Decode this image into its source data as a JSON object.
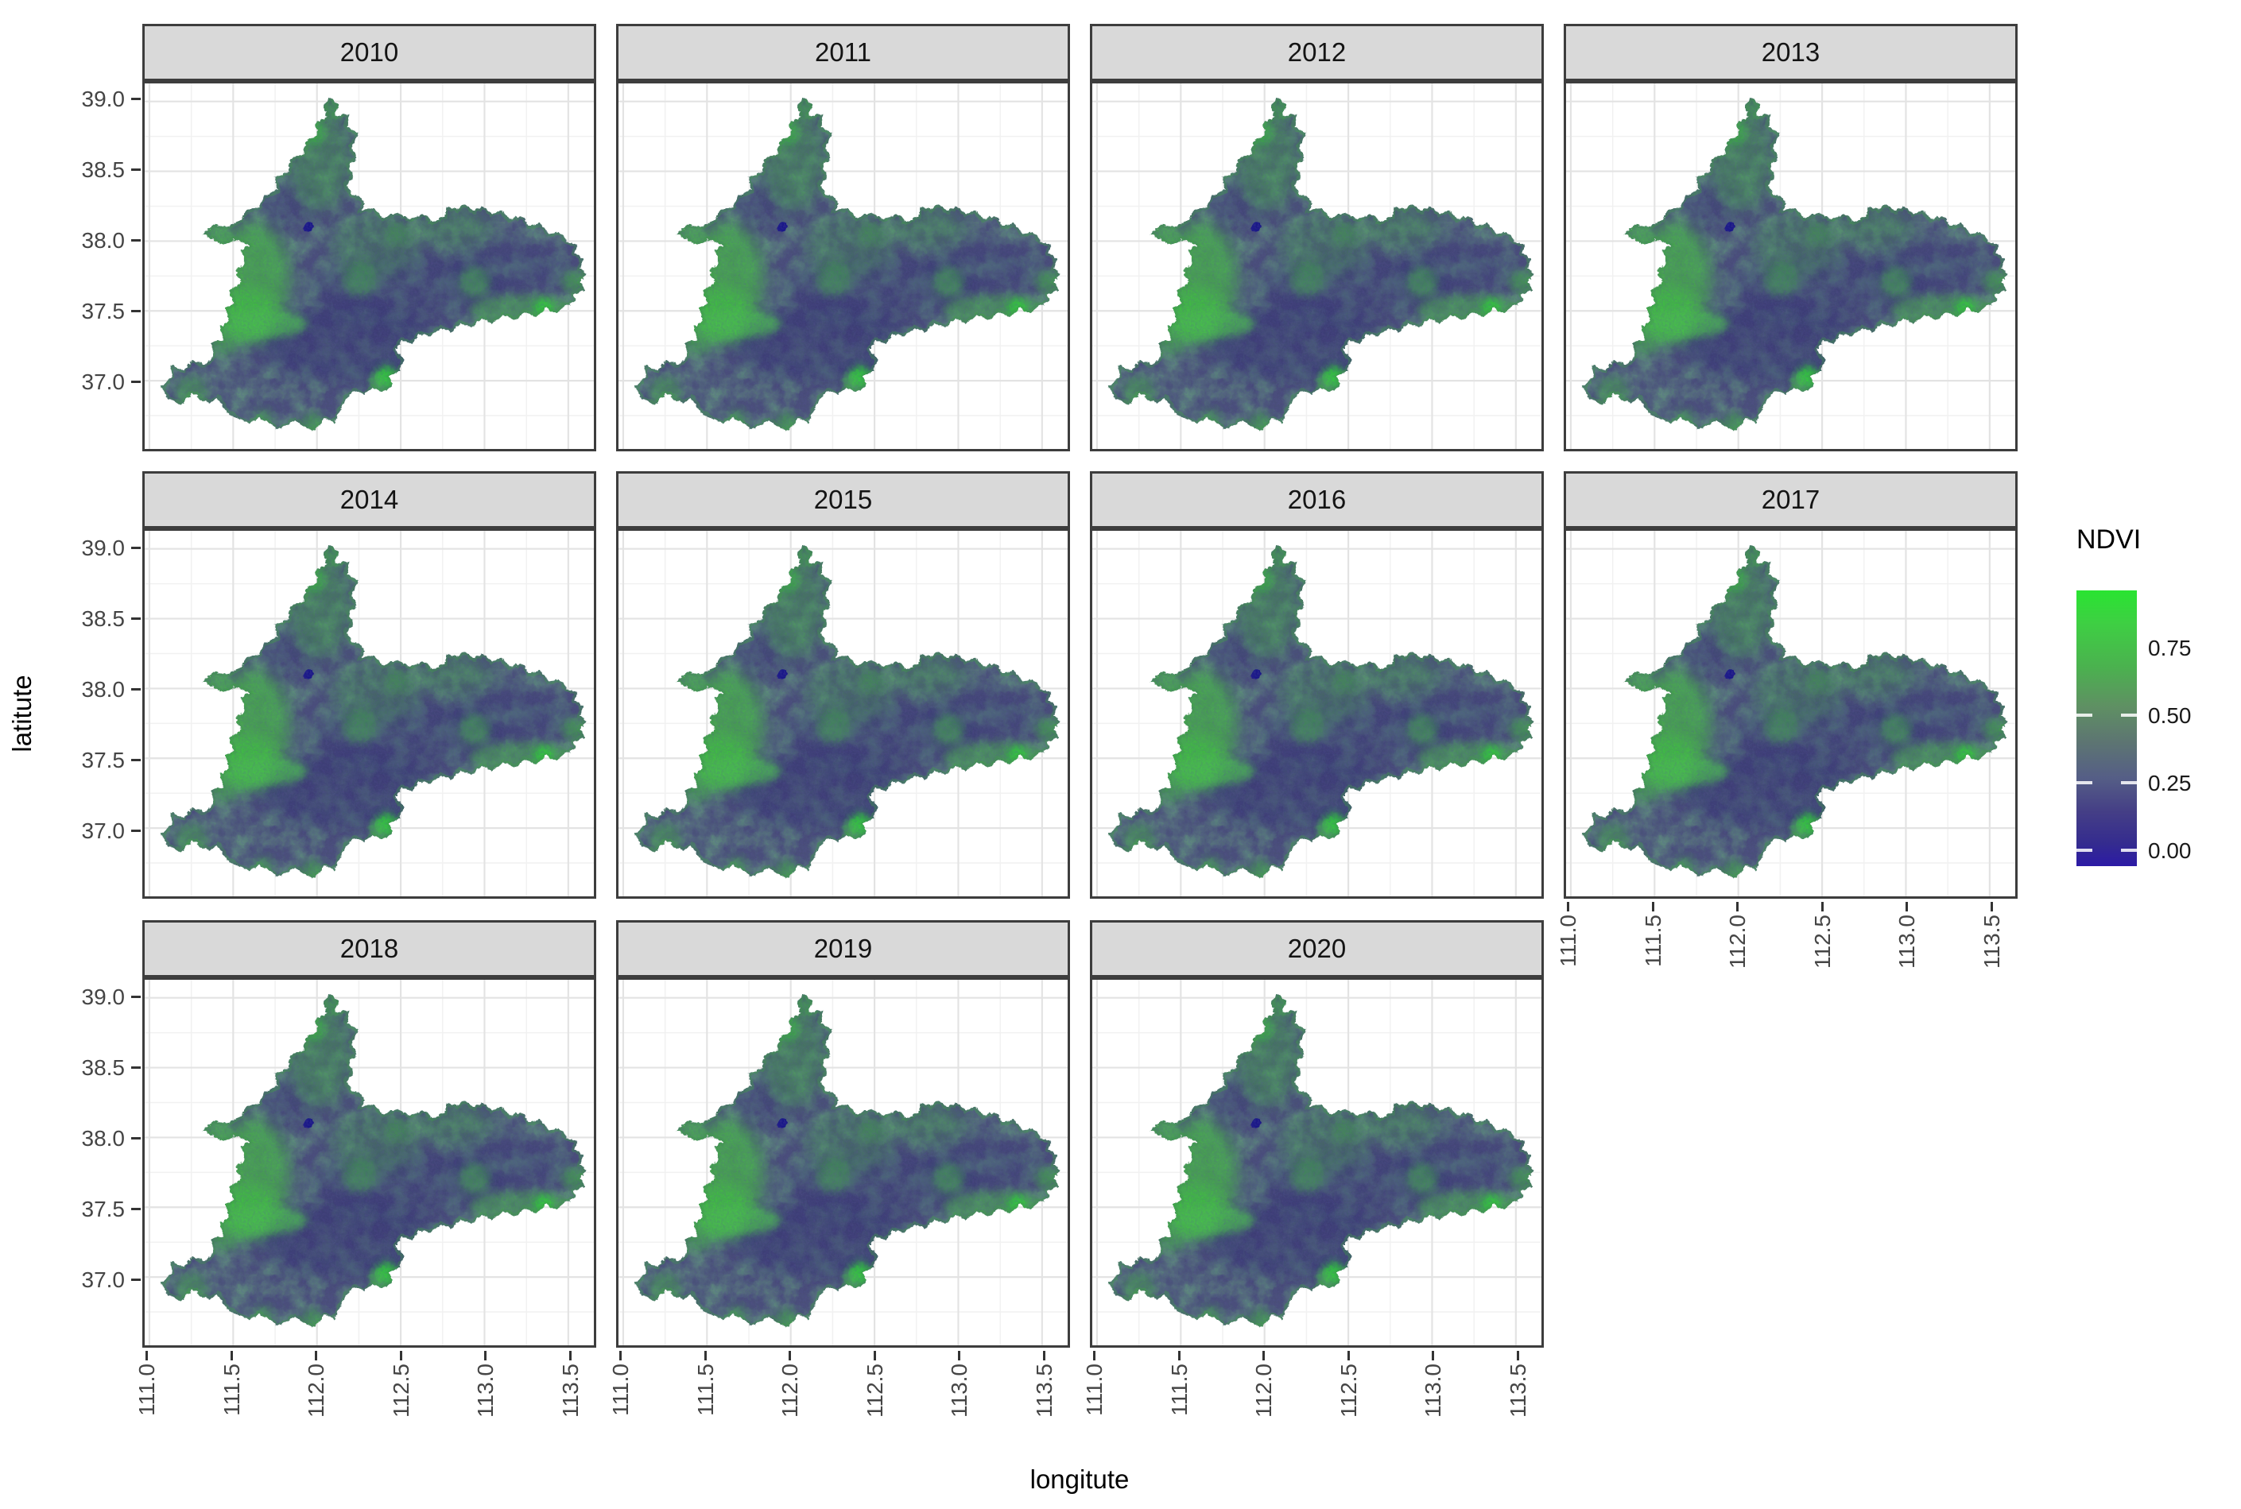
{
  "chart_data": {
    "type": "heatmap",
    "title": "",
    "facet_variable": "year",
    "facets": [
      "2010",
      "2011",
      "2012",
      "2013",
      "2014",
      "2015",
      "2016",
      "2017",
      "2018",
      "2019",
      "2020"
    ],
    "xlabel": "longitute",
    "ylabel": "latitute",
    "x_ticks": [
      111.0,
      111.5,
      112.0,
      112.5,
      113.0,
      113.5
    ],
    "y_ticks": [
      39.0,
      38.5,
      38.0,
      37.5,
      37.0
    ],
    "x_range": [
      110.97,
      113.65
    ],
    "y_range": [
      36.52,
      39.13
    ],
    "legend": {
      "title": "NDVI",
      "breaks": [
        0.75,
        0.5,
        0.25,
        0.0
      ],
      "limits": [
        -0.05,
        0.95
      ],
      "gradient_top_to_bottom": [
        "#29e431",
        "#4bb14f",
        "#5f9063",
        "#5d7572",
        "#555e86",
        "#342b8f",
        "#2c1aa6"
      ]
    },
    "region_bbox_lon": [
      111.08,
      113.62
    ],
    "region_bbox_lat": [
      36.68,
      39.04
    ],
    "pattern_note": "One administrative region raster per year; mostly low NDVI (dark blue-purple, ~0.1-0.3) with green high-NDVI patches (~0.5-0.8) along the west-central hills, the northern lobe edges, the southern border and the southeastern wing; spatial pattern nearly identical for all years 2010-2020."
  },
  "axes": {
    "x": {
      "title": "longitute",
      "tick_labels": [
        "111.0",
        "111.5",
        "112.0",
        "112.5",
        "113.0",
        "113.5"
      ]
    },
    "y": {
      "title": "latitute",
      "tick_labels": [
        "39.0",
        "38.5",
        "38.0",
        "37.5",
        "37.0"
      ]
    }
  },
  "legend": {
    "title": "NDVI",
    "labels": [
      "0.75",
      "0.50",
      "0.25",
      "0.00"
    ]
  },
  "facets": [
    {
      "year": "2010",
      "row": 0,
      "col": 0,
      "axis_y": true,
      "axis_x": false
    },
    {
      "year": "2011",
      "row": 0,
      "col": 1,
      "axis_y": false,
      "axis_x": false
    },
    {
      "year": "2012",
      "row": 0,
      "col": 2,
      "axis_y": false,
      "axis_x": false
    },
    {
      "year": "2013",
      "row": 0,
      "col": 3,
      "axis_y": false,
      "axis_x": false
    },
    {
      "year": "2014",
      "row": 1,
      "col": 0,
      "axis_y": true,
      "axis_x": false
    },
    {
      "year": "2015",
      "row": 1,
      "col": 1,
      "axis_y": false,
      "axis_x": false
    },
    {
      "year": "2016",
      "row": 1,
      "col": 2,
      "axis_y": false,
      "axis_x": false
    },
    {
      "year": "2017",
      "row": 1,
      "col": 3,
      "axis_y": false,
      "axis_x": true
    },
    {
      "year": "2018",
      "row": 2,
      "col": 0,
      "axis_y": true,
      "axis_x": true
    },
    {
      "year": "2019",
      "row": 2,
      "col": 1,
      "axis_y": false,
      "axis_x": true
    },
    {
      "year": "2020",
      "row": 2,
      "col": 2,
      "axis_y": false,
      "axis_x": true
    }
  ]
}
